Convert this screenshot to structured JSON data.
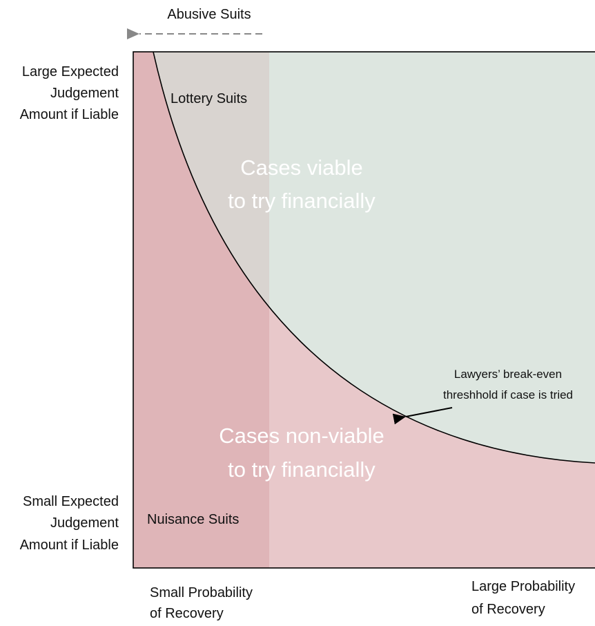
{
  "top_label": "Abusive Suits",
  "y_axis": {
    "top": [
      "Large Expected",
      "Judgement",
      "Amount if Liable"
    ],
    "bottom": [
      "Small Expected",
      "Judgement",
      "Amount if Liable"
    ]
  },
  "x_axis": {
    "left": [
      "Small Probability",
      "of Recovery"
    ],
    "right": [
      "Large Probability",
      "of Recovery"
    ]
  },
  "regions": {
    "lottery": "Lottery Suits",
    "nuisance": "Nuisance Suits",
    "viable": [
      "Cases viable",
      "to try financially"
    ],
    "non_viable": [
      "Cases non-viable",
      "to try financially"
    ]
  },
  "curve_label": [
    "Lawyers’ break-even",
    "threshhold if case is tried"
  ]
}
